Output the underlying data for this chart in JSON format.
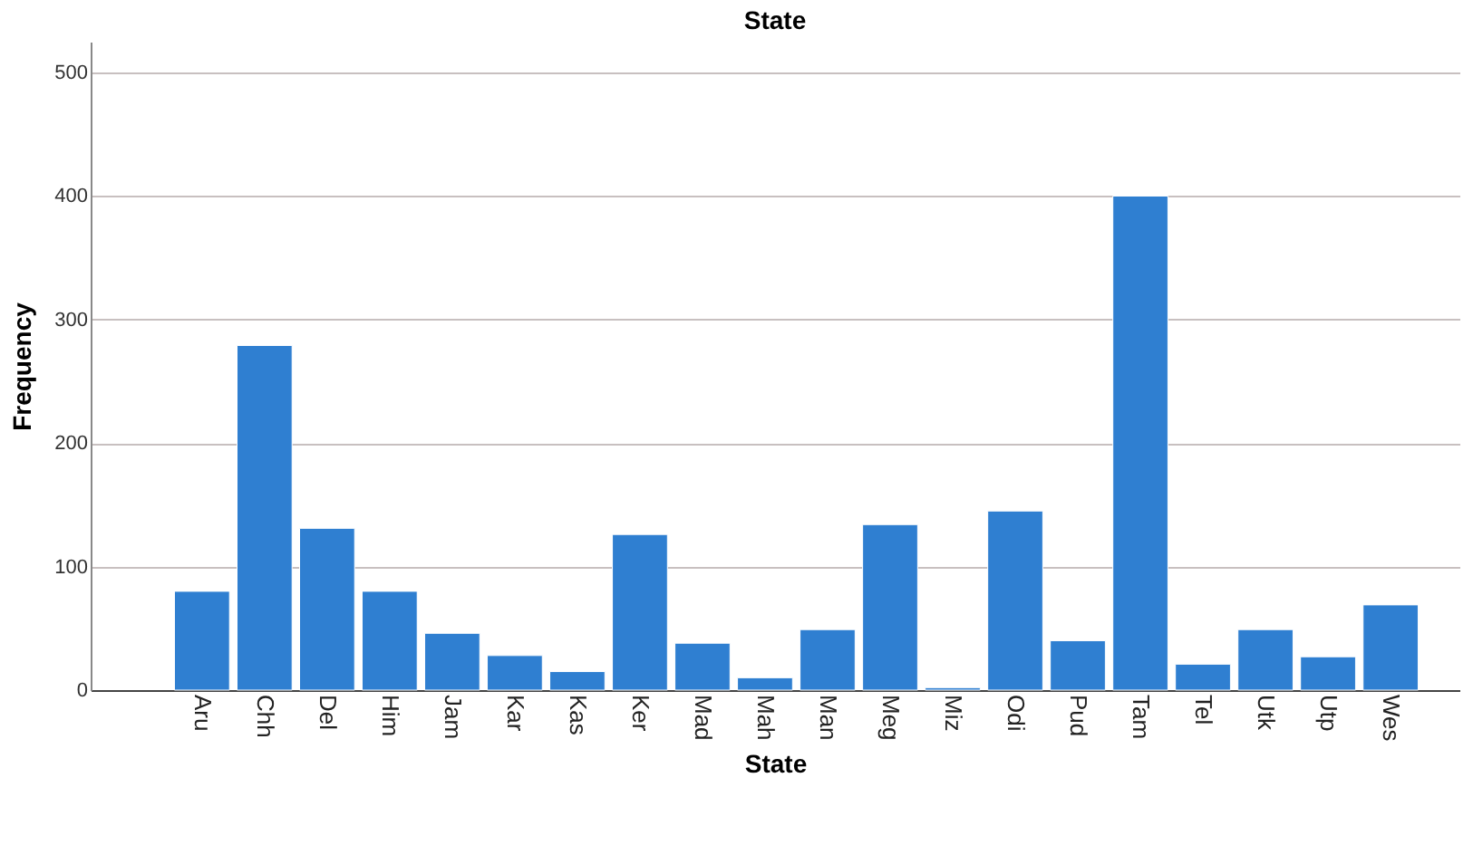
{
  "chart_data": {
    "type": "bar",
    "title": "State",
    "xlabel": "State",
    "ylabel": "Frequency",
    "categories": [
      "Aru",
      "Chh",
      "Del",
      "Him",
      "Jam",
      "Kar",
      "Kas",
      "Ker",
      "Mad",
      "Mah",
      "Man",
      "Meg",
      "Miz",
      "Odi",
      "Pud",
      "Tam",
      "Tel",
      "Utk",
      "Utp",
      "Wes"
    ],
    "values": [
      80,
      279,
      131,
      80,
      46,
      28,
      15,
      126,
      38,
      10,
      49,
      134,
      2,
      145,
      40,
      400,
      21,
      49,
      27,
      69
    ],
    "color": "#2f7fd1",
    "ylim": [
      0,
      525
    ],
    "yticks": [
      0,
      100,
      200,
      300,
      400,
      500
    ],
    "grid": "y"
  }
}
